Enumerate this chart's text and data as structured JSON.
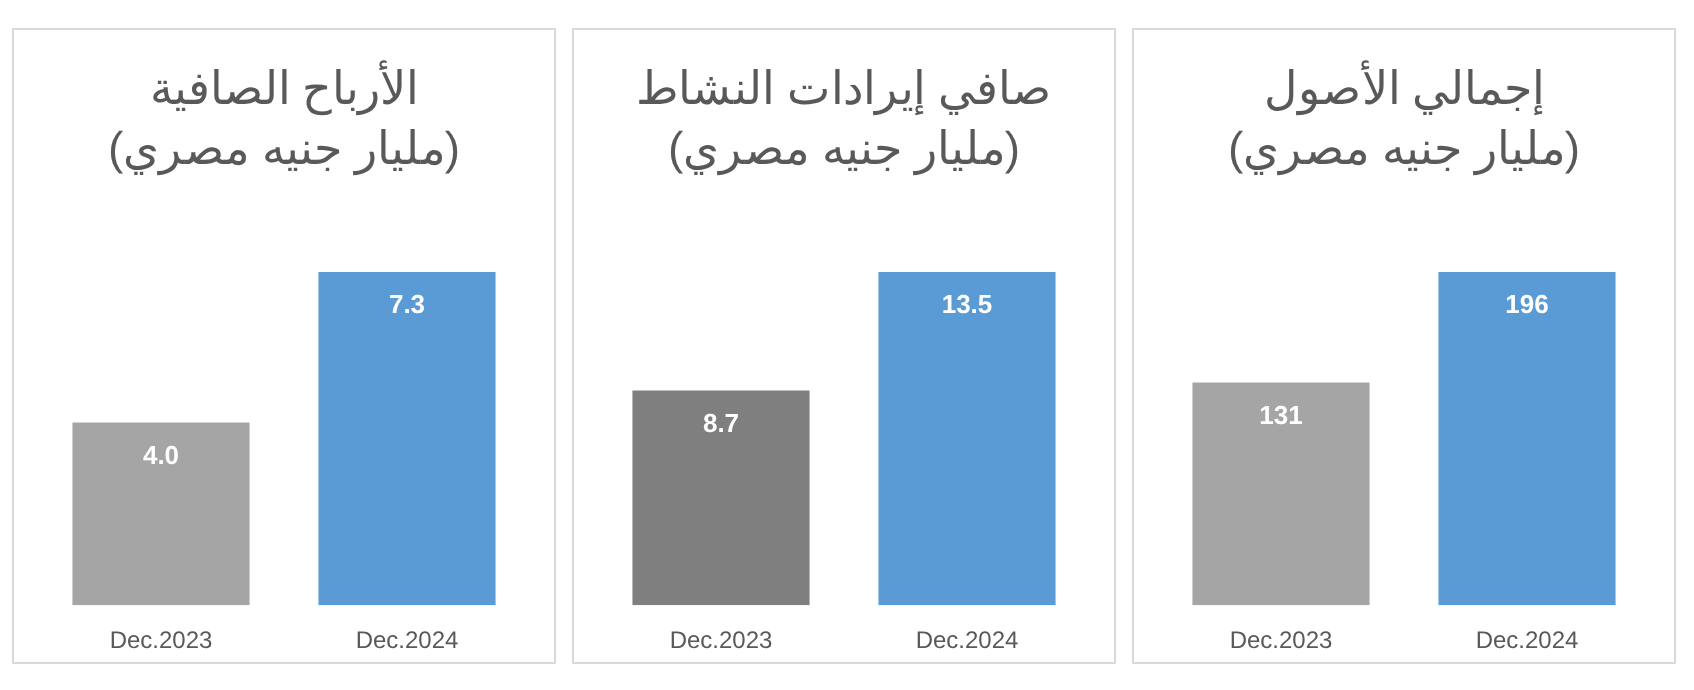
{
  "chart_data": [
    {
      "type": "bar",
      "title": "الأرباح الصافية",
      "subtitle": "(مليار جنيه مصري)",
      "categories": [
        "Dec.2023",
        "Dec.2024"
      ],
      "values": [
        4.0,
        7.3
      ],
      "value_labels": [
        "4.0",
        "7.3"
      ],
      "colors": [
        "#a5a5a5",
        "#5b9bd5"
      ]
    },
    {
      "type": "bar",
      "title": "صافي إيرادات النشاط",
      "subtitle": "(مليار جنيه مصري)",
      "categories": [
        "Dec.2023",
        "Dec.2024"
      ],
      "values": [
        8.7,
        13.5
      ],
      "value_labels": [
        "8.7",
        "13.5"
      ],
      "colors": [
        "#7f7f7f",
        "#5b9bd5"
      ]
    },
    {
      "type": "bar",
      "title": "إجمالي الأصول",
      "subtitle": "(مليار جنيه مصري)",
      "categories": [
        "Dec.2023",
        "Dec.2024"
      ],
      "values": [
        131,
        196
      ],
      "value_labels": [
        "131",
        "196"
      ],
      "colors": [
        "#a5a5a5",
        "#5b9bd5"
      ]
    }
  ]
}
